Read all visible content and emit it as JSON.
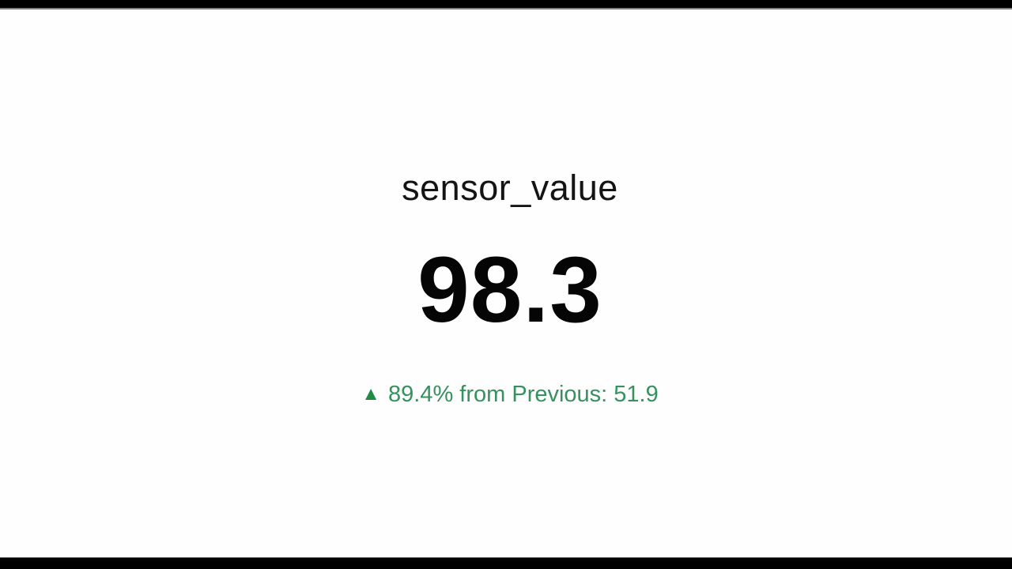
{
  "panel": {
    "title": "sensor_value",
    "value": "98.3",
    "trend": {
      "arrow": "▲",
      "text": "89.4% from Previous: 51.9",
      "arrow_color": "#1f8a44",
      "text_color": "#36915f"
    }
  },
  "frame": {
    "letterbox_color": "#000000",
    "background_color": "#fefefe"
  },
  "chart_data": {
    "type": "table",
    "title": "sensor_value",
    "values": [
      98.3
    ],
    "previous_value": 51.9,
    "change_percent": 89.4,
    "change_direction": "up",
    "annotations": [
      "▲ 89.4% from Previous: 51.9"
    ],
    "value_color": "#050505",
    "trend_color": "#36915f"
  }
}
